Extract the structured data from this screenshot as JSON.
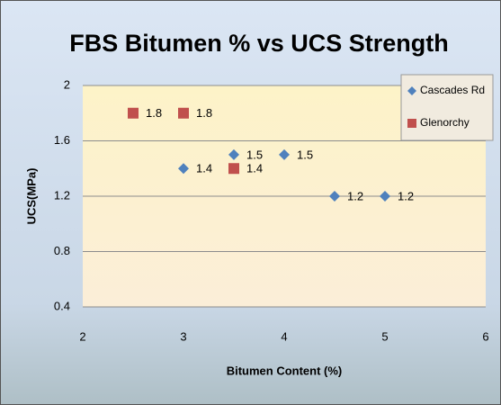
{
  "chart_data": {
    "type": "scatter",
    "title": "FBS Bitumen % vs UCS Strength",
    "xlabel": "Bitumen Content (%)",
    "ylabel": "UCS(MPa)",
    "series": [
      {
        "name": "Cascades Rd",
        "color": "#4f81bd",
        "marker": "diamond",
        "x": [
          3,
          3.5,
          4,
          4.5,
          5
        ],
        "values": [
          1.4,
          1.5,
          1.5,
          1.2,
          1.2
        ]
      },
      {
        "name": "Glenorchy",
        "color": "#c0504d",
        "marker": "square",
        "x": [
          2.5,
          3,
          3.5
        ],
        "values": [
          1.8,
          1.8,
          1.4
        ]
      }
    ],
    "xlim": [
      2,
      6
    ],
    "xticks": [
      2,
      3,
      4,
      5,
      6
    ],
    "ylim": [
      0.4,
      2
    ],
    "yticks": [
      0.4,
      0.8,
      1.2,
      1.6,
      2
    ],
    "grid": true,
    "legend": "upper right"
  }
}
